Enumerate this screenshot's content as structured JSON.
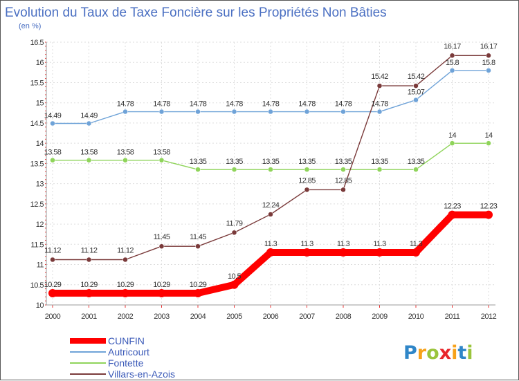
{
  "chart_data": {
    "type": "line",
    "title": "Evolution du Taux de Taxe Foncière sur les Propriétés Non Bâties",
    "subtitle": "(en %)",
    "xlabel": "",
    "ylabel": "",
    "ylim": [
      10,
      16.5
    ],
    "yticks": [
      "10",
      "10.5",
      "11",
      "11.5",
      "12",
      "12.5",
      "13",
      "13.5",
      "14",
      "14.5",
      "15",
      "15.5",
      "16",
      "16.5"
    ],
    "ytick_values": [
      10,
      10.5,
      11,
      11.5,
      12,
      12.5,
      13,
      13.5,
      14,
      14.5,
      15,
      15.5,
      16,
      16.5
    ],
    "categories": [
      "2000",
      "2001",
      "2002",
      "2003",
      "2004",
      "2005",
      "2006",
      "2007",
      "2008",
      "2009",
      "2010",
      "2011",
      "2012"
    ],
    "legend_position": "bottom-left",
    "series": [
      {
        "key": "cunfin",
        "name": "CUNFIN",
        "color": "#ff0000",
        "values": [
          10.29,
          10.29,
          10.29,
          10.29,
          10.29,
          10.5,
          11.3,
          11.3,
          11.3,
          11.3,
          11.3,
          12.23,
          12.23
        ],
        "labels": [
          "10.29",
          "10.29",
          "10.29",
          "10.29",
          "10.29",
          "10.5",
          "11.3",
          "11.3",
          "11.3",
          "11.3",
          "11.3",
          "12.23",
          "12.23"
        ]
      },
      {
        "key": "autricourt",
        "name": "Autricourt",
        "color": "#6fa3d8",
        "values": [
          14.49,
          14.49,
          14.78,
          14.78,
          14.78,
          14.78,
          14.78,
          14.78,
          14.78,
          14.78,
          15.07,
          15.8,
          15.8
        ],
        "labels": [
          "14.49",
          "14.49",
          "14.78",
          "14.78",
          "14.78",
          "14.78",
          "14.78",
          "14.78",
          "14.78",
          "14.78",
          "15.07",
          "15.8",
          "15.8"
        ]
      },
      {
        "key": "fontette",
        "name": "Fontette",
        "color": "#8fd45a",
        "values": [
          13.58,
          13.58,
          13.58,
          13.58,
          13.35,
          13.35,
          13.35,
          13.35,
          13.35,
          13.35,
          13.35,
          14,
          14
        ],
        "labels": [
          "13.58",
          "13.58",
          "13.58",
          "13.58",
          "13.35",
          "13.35",
          "13.35",
          "13.35",
          "13.35",
          "13.35",
          "13.35",
          "14",
          "14"
        ]
      },
      {
        "key": "villars",
        "name": "Villars-en-Azois",
        "color": "#7a3a3a",
        "values": [
          11.12,
          11.12,
          11.12,
          11.45,
          11.45,
          11.79,
          12.24,
          12.85,
          12.85,
          15.42,
          15.42,
          16.17,
          16.17
        ],
        "labels": [
          "11.12",
          "11.12",
          "11.12",
          "11.45",
          "11.45",
          "11.79",
          "12.24",
          "12.85",
          "12.85",
          "15.42",
          "15.42",
          "16.17",
          "16.17"
        ]
      }
    ]
  },
  "logo": {
    "letters": [
      "P",
      "r",
      "o",
      "x",
      "i",
      "t",
      "i"
    ],
    "colors": [
      "#2f86c8",
      "#f7a21b",
      "#9ac43c",
      "#e8262b",
      "#f7a21b",
      "#2f86c8",
      "#9ac43c"
    ]
  }
}
